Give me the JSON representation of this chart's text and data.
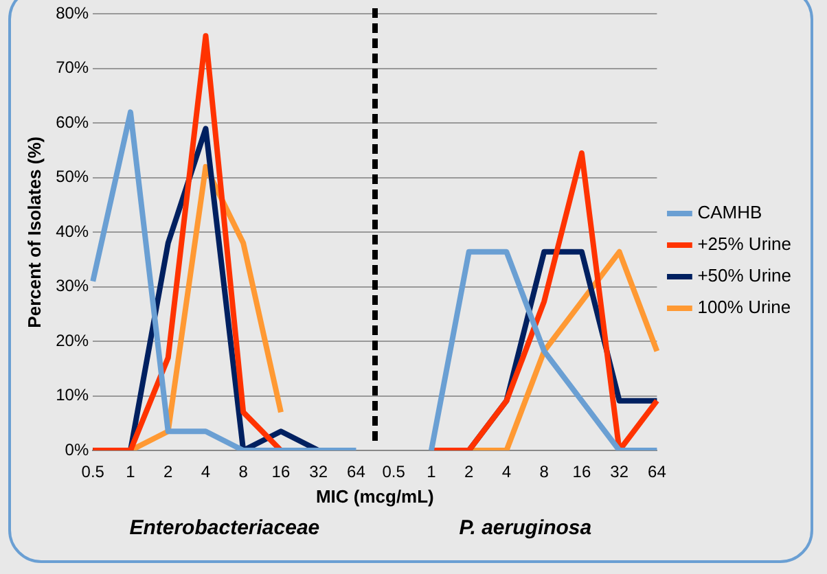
{
  "chart_data": {
    "type": "line",
    "xlabel": "MIC (mcg/mL)",
    "ylabel": "Percent of Isolates (%)",
    "categories": [
      "0.5",
      "1",
      "2",
      "4",
      "8",
      "16",
      "32",
      "64",
      "0.5",
      "1",
      "2",
      "4",
      "8",
      "16",
      "32",
      "64"
    ],
    "series": [
      {
        "name": "CAMHB",
        "color": "#6a9fd3",
        "values": [
          31,
          62,
          3.5,
          3.5,
          0,
          0,
          0,
          0,
          null,
          0,
          36.4,
          36.4,
          18.2,
          9.1,
          0,
          0
        ]
      },
      {
        "name": "+25% Urine",
        "color": "#ff3300",
        "values": [
          0,
          0,
          17,
          76,
          7,
          0,
          null,
          null,
          null,
          0,
          0,
          9.1,
          27.3,
          54.5,
          0,
          9.1
        ]
      },
      {
        "name": "+50% Urine",
        "color": "#002060",
        "values": [
          0,
          0,
          38,
          59,
          0,
          3.5,
          0,
          null,
          null,
          0,
          0,
          9.1,
          36.4,
          36.4,
          9.1,
          9.1
        ]
      },
      {
        "name": "100% Urine",
        "color": "#ff9933",
        "values": [
          0,
          0,
          3.5,
          52,
          38,
          7,
          null,
          null,
          null,
          0,
          0,
          0,
          18.2,
          27.3,
          36.4,
          18.2
        ]
      }
    ],
    "ylim": [
      0,
      80
    ],
    "yticks": [
      {
        "value": 0,
        "label": "0%"
      },
      {
        "value": 10,
        "label": "10%"
      },
      {
        "value": 20,
        "label": "20%"
      },
      {
        "value": 30,
        "label": "30%"
      },
      {
        "value": 40,
        "label": "40%"
      },
      {
        "value": 50,
        "label": "50%"
      },
      {
        "value": 60,
        "label": "60%"
      },
      {
        "value": 70,
        "label": "70%"
      },
      {
        "value": 80,
        "label": "80%"
      }
    ],
    "grid": "y",
    "legend": "right",
    "marker": "none",
    "line_style": "solid",
    "annotations": [
      "Enterobacteriaceae",
      "P. aeruginosa"
    ]
  }
}
